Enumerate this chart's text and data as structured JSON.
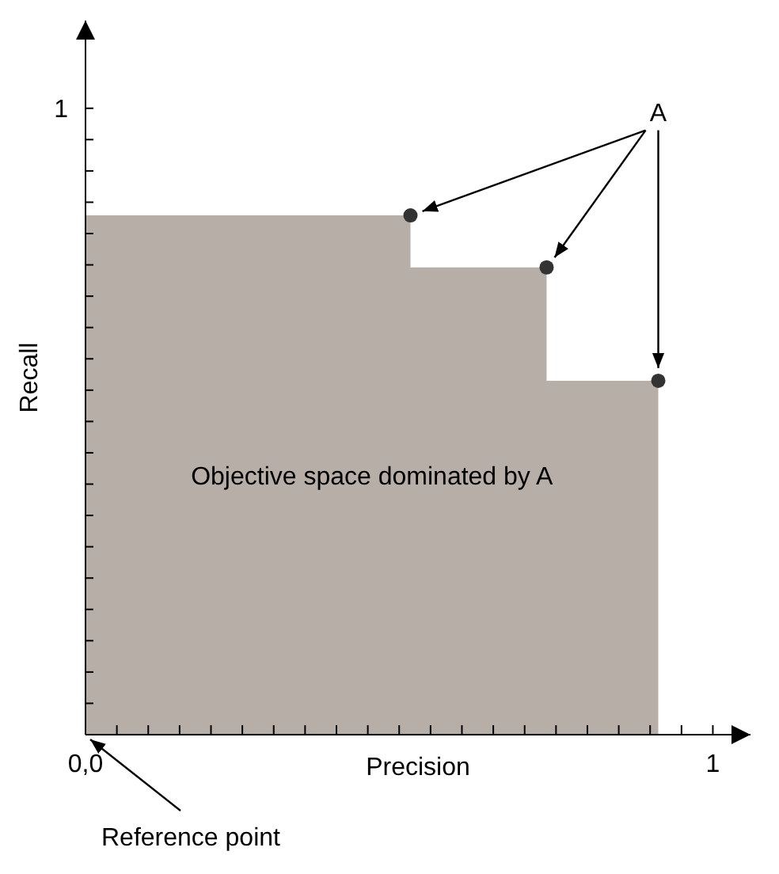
{
  "chart_data": {
    "type": "area",
    "xlabel": "Precision",
    "ylabel": "Recall",
    "series": [
      {
        "color": "#b8aea8",
        "x": [
          0,
          0.518,
          0.735,
          0.913
        ],
        "values": [
          0.829,
          0.829,
          0.746,
          0.565
        ]
      },
      {
        "type": "scatter",
        "marker": "circle",
        "color": "#333333",
        "x": [
          0.518,
          0.735,
          0.913
        ],
        "values": [
          0.829,
          0.746,
          0.565
        ]
      }
    ],
    "xlim": [
      0,
      1.06
    ],
    "ylim": [
      0,
      1.14
    ],
    "xticks": [
      {
        "value": 0,
        "label": "0,0"
      },
      {
        "value": 0.05,
        "label": null
      },
      {
        "value": 0.1,
        "label": null
      },
      {
        "value": 0.15,
        "label": null
      },
      {
        "value": 0.2,
        "label": null
      },
      {
        "value": 0.25,
        "label": null
      },
      {
        "value": 0.3,
        "label": null
      },
      {
        "value": 0.35,
        "label": null
      },
      {
        "value": 0.4,
        "label": null
      },
      {
        "value": 0.45,
        "label": null
      },
      {
        "value": 0.5,
        "label": null
      },
      {
        "value": 0.55,
        "label": null
      },
      {
        "value": 0.6,
        "label": null
      },
      {
        "value": 0.65,
        "label": null
      },
      {
        "value": 0.7,
        "label": null
      },
      {
        "value": 0.75,
        "label": null
      },
      {
        "value": 0.8,
        "label": null
      },
      {
        "value": 0.85,
        "label": null
      },
      {
        "value": 0.9,
        "label": null
      },
      {
        "value": 0.95,
        "label": null
      },
      1
    ],
    "yticks": [
      {
        "value": 0.05,
        "label": null
      },
      {
        "value": 0.1,
        "label": null
      },
      {
        "value": 0.15,
        "label": null
      },
      {
        "value": 0.2,
        "label": null
      },
      {
        "value": 0.25,
        "label": null
      },
      {
        "value": 0.3,
        "label": null
      },
      {
        "value": 0.35,
        "label": null
      },
      {
        "value": 0.4,
        "label": null
      },
      {
        "value": 0.45,
        "label": null
      },
      {
        "value": 0.5,
        "label": null
      },
      {
        "value": 0.55,
        "label": null
      },
      {
        "value": 0.6,
        "label": null
      },
      {
        "value": 0.65,
        "label": null
      },
      {
        "value": 0.7,
        "label": null
      },
      {
        "value": 0.75,
        "label": null
      },
      {
        "value": 0.8,
        "label": null
      },
      {
        "value": 0.85,
        "label": null
      },
      {
        "value": 0.9,
        "label": null
      },
      {
        "value": 0.95,
        "label": null
      },
      1
    ],
    "grid": false,
    "legend": false,
    "annotations": [
      {
        "text": "A",
        "x": 0.913,
        "y": 0.565
      },
      "Objective space dominated by A",
      {
        "text": "Reference point",
        "x": 0,
        "y": 0
      }
    ]
  }
}
